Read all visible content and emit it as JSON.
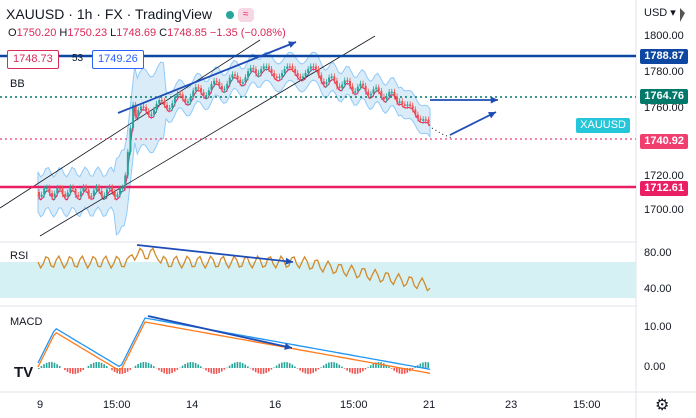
{
  "header": {
    "symbol": "XAUUSD",
    "interval": "1h",
    "exchange": "FX",
    "brand": "TradingView"
  },
  "ohlc": {
    "o_label": "O",
    "o": "1750.20",
    "h_label": "H",
    "h": "1750.23",
    "l_label": "L",
    "l": "1748.69",
    "c_label": "C",
    "c": "1748.85",
    "change": "−1.35 (−0.08%)"
  },
  "price_boxes": {
    "bid": "1748.73",
    "spread": "53",
    "ask": "1749.26"
  },
  "indicators": {
    "bb": "BB",
    "rsi": "RSI",
    "macd": "MACD"
  },
  "currency": "USD",
  "currency_arrow": "▾",
  "price_axis": [
    "1800.00",
    "1780.00",
    "1760.00",
    "1720.00",
    "1700.00"
  ],
  "price_tags": {
    "resist": "1788.87",
    "mid": "1764.76",
    "symbol": "XAUUSD",
    "current": "1740.92",
    "support": "1712.61"
  },
  "rsi_axis": [
    "80.00",
    "40.00"
  ],
  "macd_axis": [
    "10.00",
    "0.00"
  ],
  "time_axis": [
    "9",
    "15:00",
    "14",
    "16",
    "15:00",
    "21",
    "23",
    "15:00"
  ],
  "colors": {
    "resist": "#0d47a1",
    "mid": "#00796b",
    "support": "#e91e63",
    "current": "#f23e6f",
    "symbol_tag": "#26c6da"
  }
}
